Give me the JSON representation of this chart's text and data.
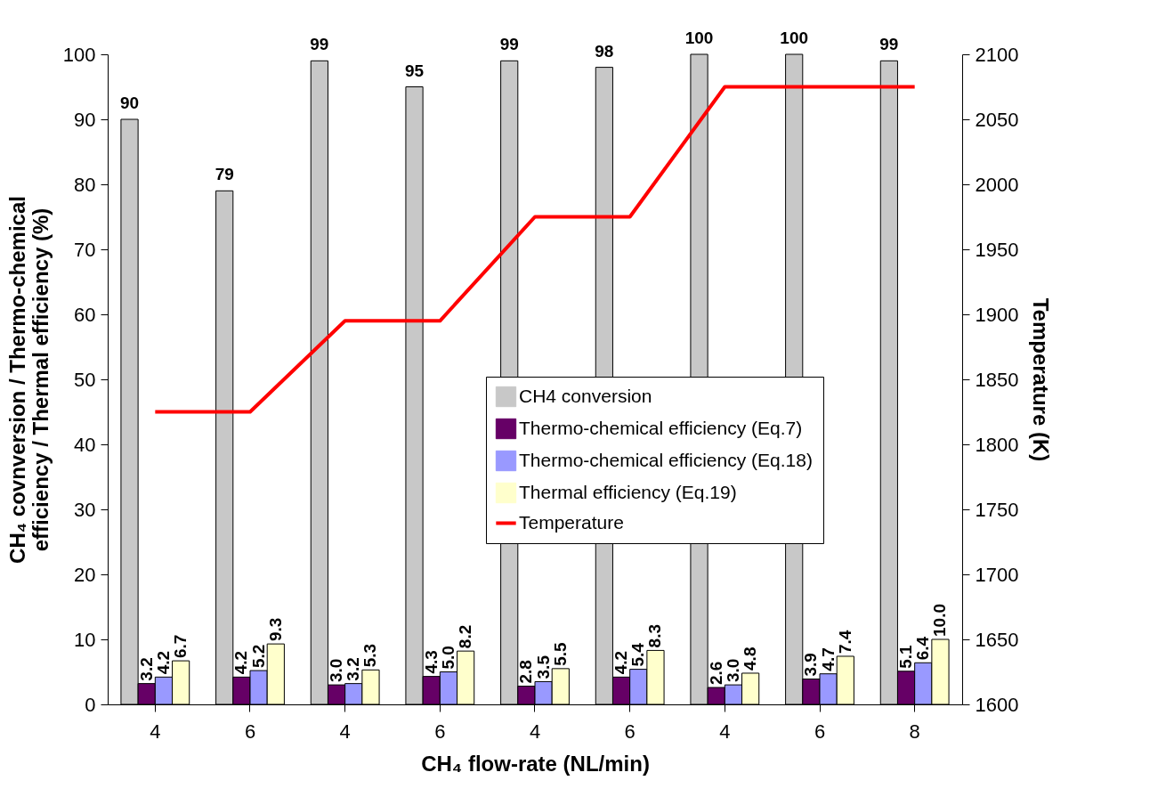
{
  "chart_data": {
    "type": "bar",
    "categories": [
      "4",
      "6",
      "4",
      "6",
      "4",
      "6",
      "4",
      "6",
      "8"
    ],
    "xlabel": "CH₄ flow-rate (NL/min)",
    "ylabel": "CH₄ covnversion / Thermo-chemical efficiency / Thermal efficiency (%)",
    "y2label": "Temperature (K)",
    "ylim": [
      0,
      100
    ],
    "yticks": [
      0,
      10,
      20,
      30,
      40,
      50,
      60,
      70,
      80,
      90,
      100
    ],
    "y2lim": [
      1600,
      2100
    ],
    "y2ticks": [
      1600,
      1650,
      1700,
      1750,
      1800,
      1850,
      1900,
      1950,
      2000,
      2050,
      2100
    ],
    "legend": "right",
    "grid": false,
    "series": [
      {
        "name": "CH4 conversion",
        "color": "#c8c8c8",
        "values": [
          90,
          79,
          99,
          95,
          99,
          98,
          100,
          100,
          99
        ],
        "value_labels": [
          "90",
          "79",
          "99",
          "95",
          "99",
          "98",
          "100",
          "100",
          "99"
        ]
      },
      {
        "name": "Thermo-chemical efficiency (Eq.7)",
        "color": "#660066",
        "values": [
          3.2,
          4.2,
          3.0,
          4.3,
          2.8,
          4.2,
          2.6,
          3.9,
          5.1
        ],
        "value_labels": [
          "3.2",
          "4.2",
          "3.0",
          "4.3",
          "2.8",
          "4.2",
          "2.6",
          "3.9",
          "5.1"
        ]
      },
      {
        "name": "Thermo-chemical efficiency (Eq.18)",
        "color": "#9999ff",
        "values": [
          4.2,
          5.2,
          3.2,
          5.0,
          3.5,
          5.4,
          3.0,
          4.7,
          6.4
        ],
        "value_labels": [
          "4.2",
          "5.2",
          "3.2",
          "5.0",
          "3.5",
          "5.4",
          "3.0",
          "4.7",
          "6.4"
        ]
      },
      {
        "name": "Thermal efficiency (Eq.19)",
        "color": "#ffffcc",
        "values": [
          6.7,
          9.3,
          5.3,
          8.2,
          5.5,
          8.3,
          4.8,
          7.4,
          10.0
        ],
        "value_labels": [
          "6.7",
          "9.3",
          "5.3",
          "8.2",
          "5.5",
          "8.3",
          "4.8",
          "7.4",
          "10.0"
        ]
      },
      {
        "name": "Temperature",
        "type": "line",
        "axis": "y2",
        "color": "#ff0000",
        "values": [
          1825,
          1825,
          1895,
          1895,
          1975,
          1975,
          2075,
          2075,
          2075
        ]
      }
    ]
  }
}
